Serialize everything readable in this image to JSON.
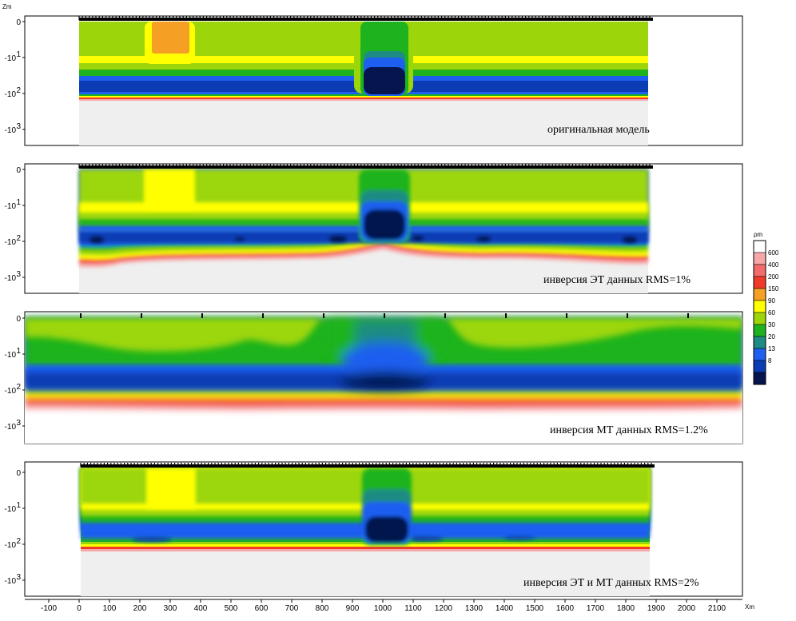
{
  "chart_data": {
    "type": "heatmap",
    "x_axis": {
      "label": "Xm",
      "range": [
        -150,
        2250
      ],
      "ticks": [
        -100,
        0,
        100,
        200,
        300,
        400,
        500,
        600,
        700,
        800,
        900,
        1000,
        1100,
        1200,
        1300,
        1400,
        1500,
        1600,
        1700,
        1800,
        1900,
        2000,
        2100
      ]
    },
    "y_axis": {
      "label": "Zm",
      "ticks": [
        "0",
        "-10",
        "-10",
        "-10"
      ],
      "tick_exponents": [
        "",
        "1",
        "2",
        "3"
      ]
    },
    "colorbar": {
      "unit": "ρm",
      "colors": [
        "#ffffff",
        "#f7a7a7",
        "#f36b6b",
        "#f23a2a",
        "#f5a024",
        "#ffff00",
        "#9cd60a",
        "#1eb31e",
        "#1e8c82",
        "#1e5ff0",
        "#0b3cb4",
        "#06154e"
      ],
      "labels": [
        "600",
        "400",
        "200",
        "150",
        "90",
        "60",
        "30",
        "20",
        "13",
        "8"
      ]
    },
    "panels": [
      {
        "caption": "оригинальная модель"
      },
      {
        "caption": "инверсия ЭТ данных RMS=1%"
      },
      {
        "caption": "инверсия МТ данных RMS=1.2%"
      },
      {
        "caption": "инверсия ЭТ и МТ данных RMS=2%"
      }
    ]
  }
}
